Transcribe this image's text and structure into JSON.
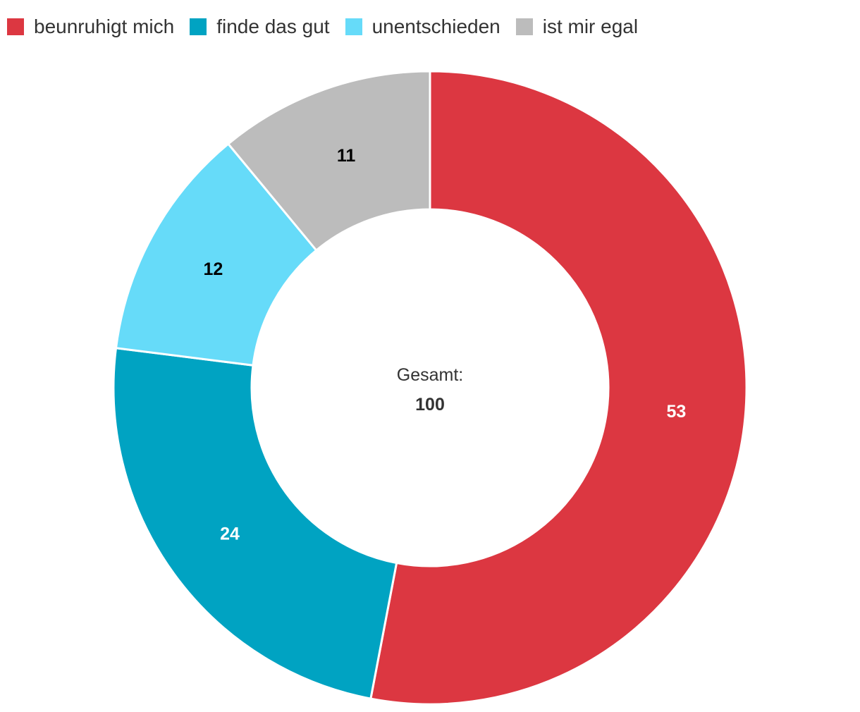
{
  "chart_data": {
    "type": "pie",
    "variant": "donut",
    "legend_position": "top-left",
    "categories": [
      "beunruhigt mich",
      "finde das gut",
      "unentschieden",
      "ist mir egal"
    ],
    "values": [
      53,
      24,
      12,
      11
    ],
    "colors": [
      "#dc3741",
      "#00a3c2",
      "#66dbf9",
      "#bcbcbc"
    ],
    "label_colors": [
      "#ffffff",
      "#ffffff",
      "#000000",
      "#000000"
    ],
    "center": {
      "title": "Gesamt:",
      "value": "100"
    }
  }
}
